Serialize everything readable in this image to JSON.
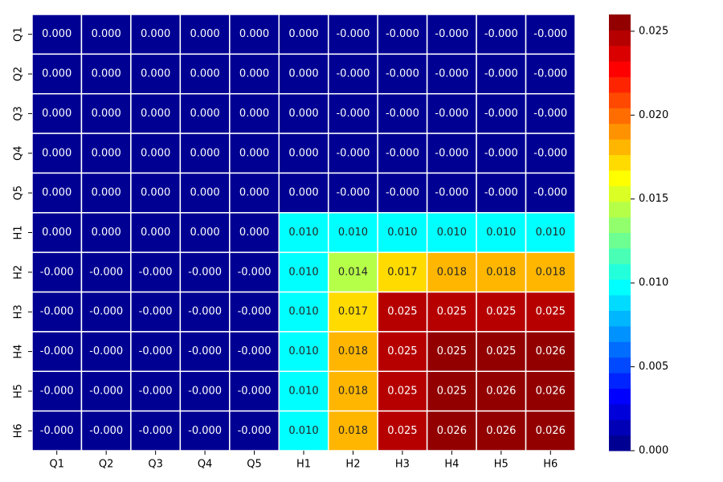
{
  "chart_data": {
    "type": "heatmap",
    "title": "",
    "xlabel": "",
    "ylabel": "",
    "x_categories": [
      "Q1",
      "Q2",
      "Q3",
      "Q4",
      "Q5",
      "H1",
      "H2",
      "H3",
      "H4",
      "H5",
      "H6"
    ],
    "y_categories": [
      "Q1",
      "Q2",
      "Q3",
      "Q4",
      "Q5",
      "H1",
      "H2",
      "H3",
      "H4",
      "H5",
      "H6"
    ],
    "cell_labels": [
      [
        "0.000",
        "0.000",
        "0.000",
        "0.000",
        "0.000",
        "0.000",
        "-0.000",
        "-0.000",
        "-0.000",
        "-0.000",
        "-0.000"
      ],
      [
        "0.000",
        "0.000",
        "0.000",
        "0.000",
        "0.000",
        "0.000",
        "-0.000",
        "-0.000",
        "-0.000",
        "-0.000",
        "-0.000"
      ],
      [
        "0.000",
        "0.000",
        "0.000",
        "0.000",
        "0.000",
        "0.000",
        "-0.000",
        "-0.000",
        "-0.000",
        "-0.000",
        "-0.000"
      ],
      [
        "0.000",
        "0.000",
        "0.000",
        "0.000",
        "0.000",
        "0.000",
        "-0.000",
        "-0.000",
        "-0.000",
        "-0.000",
        "-0.000"
      ],
      [
        "0.000",
        "0.000",
        "0.000",
        "0.000",
        "0.000",
        "0.000",
        "-0.000",
        "-0.000",
        "-0.000",
        "-0.000",
        "-0.000"
      ],
      [
        "0.000",
        "0.000",
        "0.000",
        "0.000",
        "0.000",
        "0.010",
        "0.010",
        "0.010",
        "0.010",
        "0.010",
        "0.010"
      ],
      [
        "-0.000",
        "-0.000",
        "-0.000",
        "-0.000",
        "-0.000",
        "0.010",
        "0.014",
        "0.017",
        "0.018",
        "0.018",
        "0.018"
      ],
      [
        "-0.000",
        "-0.000",
        "-0.000",
        "-0.000",
        "-0.000",
        "0.010",
        "0.017",
        "0.025",
        "0.025",
        "0.025",
        "0.025"
      ],
      [
        "-0.000",
        "-0.000",
        "-0.000",
        "-0.000",
        "-0.000",
        "0.010",
        "0.018",
        "0.025",
        "0.025",
        "0.025",
        "0.026"
      ],
      [
        "-0.000",
        "-0.000",
        "-0.000",
        "-0.000",
        "-0.000",
        "0.010",
        "0.018",
        "0.025",
        "0.025",
        "0.026",
        "0.026"
      ],
      [
        "-0.000",
        "-0.000",
        "-0.000",
        "-0.000",
        "-0.000",
        "0.010",
        "0.018",
        "0.025",
        "0.026",
        "0.026",
        "0.026"
      ]
    ],
    "values": [
      [
        0,
        0,
        0,
        0,
        0,
        0,
        0,
        0,
        0,
        0,
        0
      ],
      [
        0,
        0,
        0,
        0,
        0,
        0,
        0,
        0,
        0,
        0,
        0
      ],
      [
        0,
        0,
        0,
        0,
        0,
        0,
        0,
        0,
        0,
        0,
        0
      ],
      [
        0,
        0,
        0,
        0,
        0,
        0,
        0,
        0,
        0,
        0,
        0
      ],
      [
        0,
        0,
        0,
        0,
        0,
        0,
        0,
        0,
        0,
        0,
        0
      ],
      [
        0,
        0,
        0,
        0,
        0,
        0.01,
        0.01,
        0.01,
        0.01,
        0.01,
        0.01
      ],
      [
        0,
        0,
        0,
        0,
        0,
        0.01,
        0.014,
        0.017,
        0.018,
        0.018,
        0.018
      ],
      [
        0,
        0,
        0,
        0,
        0,
        0.01,
        0.017,
        0.0245,
        0.0249,
        0.025,
        0.025
      ],
      [
        0,
        0,
        0,
        0,
        0,
        0.01,
        0.018,
        0.0249,
        0.0253,
        0.0255,
        0.0256
      ],
      [
        0,
        0,
        0,
        0,
        0,
        0.01,
        0.018,
        0.025,
        0.0255,
        0.0257,
        0.0258
      ],
      [
        0,
        0,
        0,
        0,
        0,
        0.01,
        0.018,
        0.025,
        0.0256,
        0.0258,
        0.026
      ]
    ],
    "colorscale": "jet",
    "color_range": [
      0,
      0.026
    ],
    "colorbar_ticks": [
      0.0,
      0.005,
      0.01,
      0.015,
      0.02,
      0.025
    ],
    "colorbar_tick_labels": [
      "0.000",
      "0.005",
      "0.010",
      "0.015",
      "0.020",
      "0.025"
    ],
    "colorbar_levels": 28,
    "grid": false,
    "colorbar_position": "right"
  }
}
